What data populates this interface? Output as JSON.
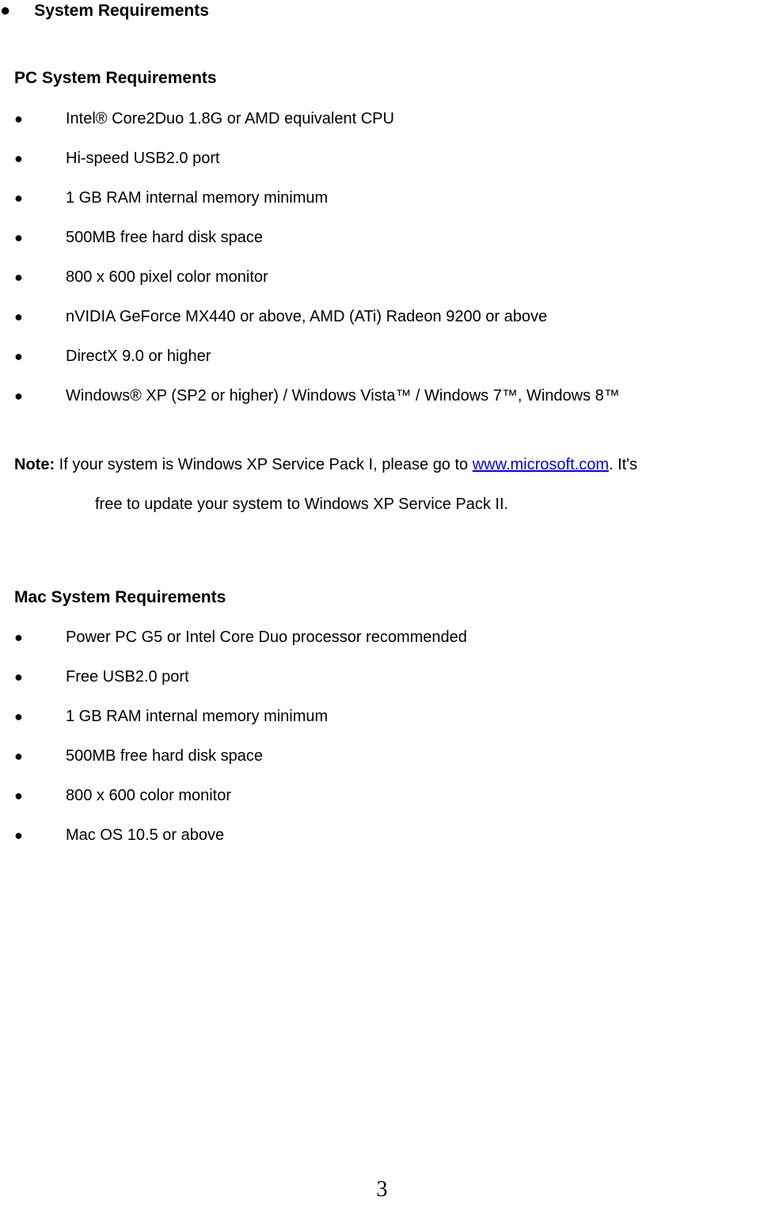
{
  "top": {
    "bullet": "●",
    "title": "System Requirements"
  },
  "pc": {
    "heading": "PC System Requirements",
    "items": [
      "Intel® Core2Duo 1.8G or AMD equivalent CPU",
      "Hi-speed USB2.0 port",
      "1 GB RAM internal memory minimum",
      "500MB free hard disk space",
      "800 x 600 pixel color monitor",
      "nVIDIA GeForce MX440 or above, AMD (ATi) Radeon 9200 or above",
      "DirectX 9.0 or higher",
      "Windows® XP (SP2 or higher) / Windows Vista™ / Windows 7™, Windows 8™"
    ]
  },
  "note": {
    "label": "Note:",
    "line1_pre": " If your system is Windows XP Service Pack I, please go to ",
    "link_text": "www.microsoft.com",
    "link_href": "http://www.microsoft.com",
    "line1_post": ". It's",
    "line2": "free to update your system to Windows XP Service Pack II."
  },
  "mac": {
    "heading": "Mac System Requirements",
    "items": [
      "Power PC G5 or Intel Core Duo processor recommended",
      "Free USB2.0 port",
      "1 GB RAM internal memory minimum",
      "500MB free hard disk space",
      "800 x 600 color monitor",
      "Mac OS 10.5 or above"
    ]
  },
  "bullet_char": "●",
  "page_number": "3",
  "colors": {
    "text": "#000000",
    "link": "#0000ee",
    "background": "#ffffff"
  },
  "typography": {
    "body_fontsize": 20,
    "heading_fontsize": 21,
    "page_number_fontsize": 28
  }
}
